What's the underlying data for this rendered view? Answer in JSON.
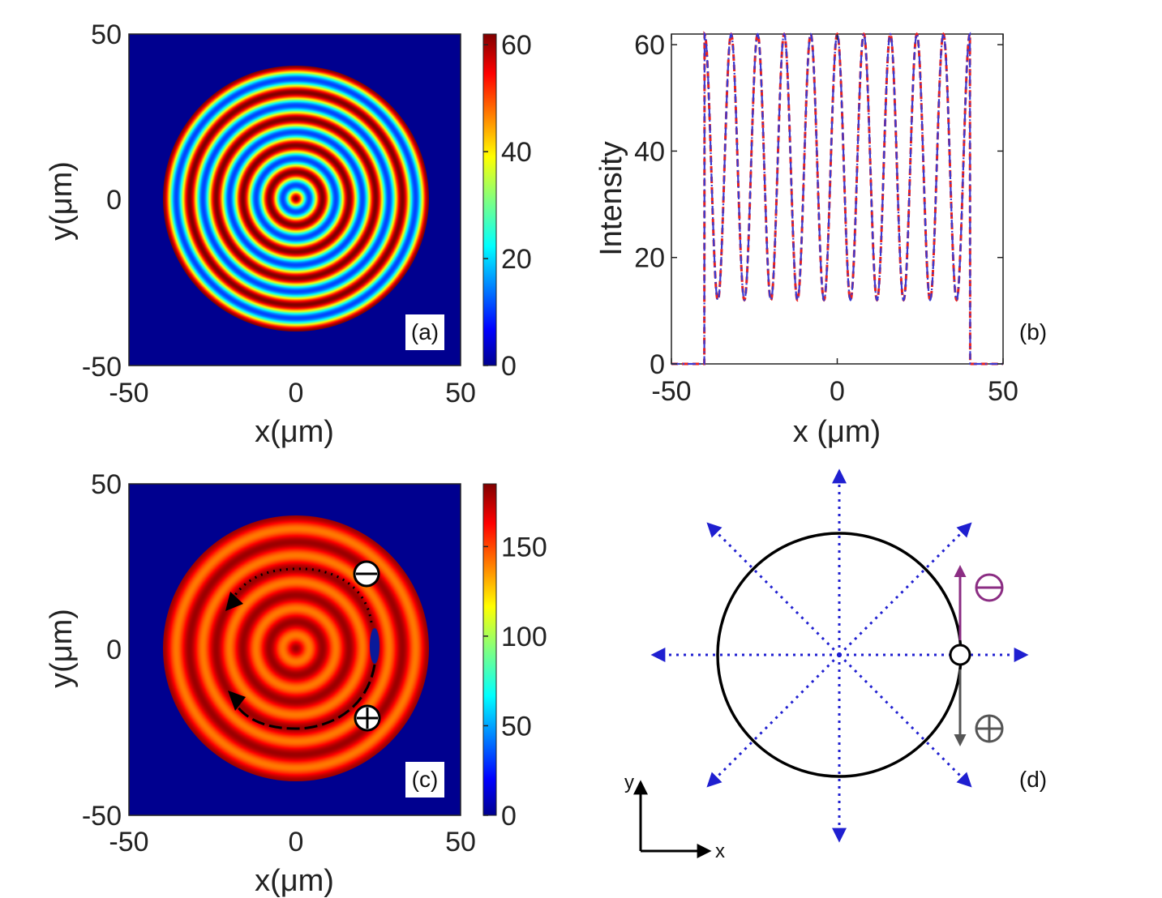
{
  "chart_data": [
    {
      "panel": "(a)",
      "type": "heatmap",
      "xlabel": "x(μm)",
      "ylabel": "y(μm)",
      "xlim": [
        -50,
        50
      ],
      "ylim": [
        -50,
        50
      ],
      "x_ticks": [
        "-50",
        "0",
        "50"
      ],
      "y_ticks": [
        "-50",
        "0",
        "50"
      ],
      "colorbar": {
        "range": [
          0,
          62
        ],
        "ticks": [
          "0",
          "20",
          "40",
          "60"
        ],
        "colormap": "jet"
      },
      "disk_radius": 40,
      "ring_period": 8,
      "background_value": 0,
      "min_value": 12,
      "max_value": 62
    },
    {
      "panel": "(b)",
      "type": "line",
      "xlabel": "x (μm)",
      "ylabel": "Intensity",
      "xlim": [
        -50,
        50
      ],
      "ylim": [
        0,
        62
      ],
      "x_ticks": [
        "-50",
        "0",
        "50"
      ],
      "y_ticks": [
        "0",
        "20",
        "40",
        "60"
      ],
      "grid": false,
      "series": [
        {
          "style": "dashed",
          "color": "#e8201e",
          "x_support": [
            -40,
            40
          ],
          "period": 8,
          "min": 12,
          "max": 62
        },
        {
          "style": "dash-dot",
          "color": "#3a3ad0",
          "x_support": [
            -40,
            40
          ],
          "period": 8,
          "min": 12,
          "max": 62
        }
      ]
    },
    {
      "panel": "(c)",
      "type": "heatmap",
      "xlabel": "x(μm)",
      "ylabel": "y(μm)",
      "xlim": [
        -50,
        50
      ],
      "ylim": [
        -50,
        50
      ],
      "x_ticks": [
        "-50",
        "0",
        "50"
      ],
      "y_ticks": [
        "-50",
        "0",
        "50"
      ],
      "colorbar": {
        "range": [
          0,
          185
        ],
        "ticks": [
          "0",
          "50",
          "100",
          "150"
        ],
        "colormap": "jet"
      },
      "disk_radius": 40,
      "ring_period": 8,
      "min_value": 140,
      "max_value": 180,
      "annotations": [
        {
          "symbol": "⊖",
          "x": 22,
          "y": 23
        },
        {
          "symbol": "⊕",
          "x": 22,
          "y": -20
        }
      ]
    }
  ],
  "diagram_d": {
    "panel": "(d)",
    "minus_symbol": "⊖",
    "plus_symbol": "⊕",
    "axis_x_label": "x",
    "axis_y_label": "y",
    "colors": {
      "rays": "#1f1fd0",
      "minus": "#8b2d83",
      "plus": "#555555"
    }
  },
  "colors": {
    "axis": "#222222",
    "jet_background": "#00008f"
  }
}
